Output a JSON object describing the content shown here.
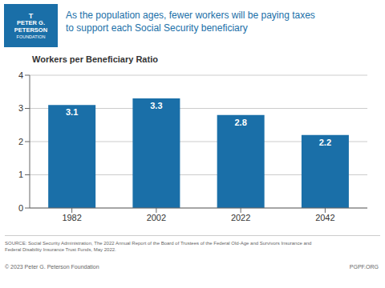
{
  "chart_data": {
    "type": "bar",
    "title": "As the population ages, fewer workers will be paying taxes\nto support each Social Security beneficiary",
    "subtitle": "Workers per Beneficiary Ratio",
    "categories": [
      "1982",
      "2002",
      "2022",
      "2042"
    ],
    "values": [
      3.1,
      3.3,
      2.8,
      2.2
    ],
    "color": "#1a6fa8",
    "ylim": [
      0,
      4
    ],
    "yticks": [
      0,
      1,
      2,
      3,
      4
    ],
    "grid": true,
    "data_labels": true,
    "annotations": [
      "T",
      "PETER G.",
      "PETERSON",
      "FOUNDATION",
      "SOURCE: Social Security Administration, The 2022 Annual Report of the Board of Trustees of the Federal Old-Age and Survivors Insurance and\nFederal Disability Insurance Trust Funds, May 2022.",
      "© 2023 Peter G. Peterson Foundation",
      "PGPF.ORG"
    ]
  }
}
